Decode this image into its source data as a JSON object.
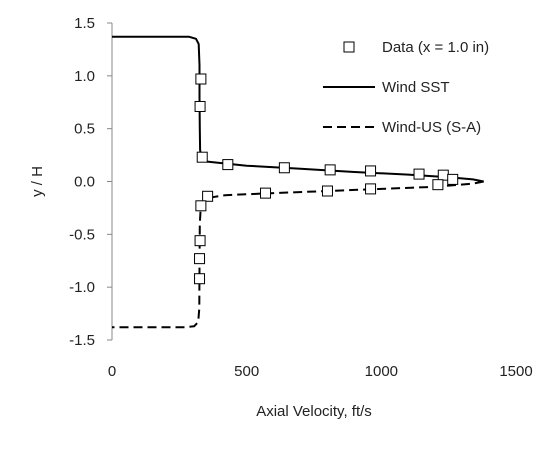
{
  "chart_data": {
    "type": "line",
    "title": "",
    "xlabel": "Axial Velocity, ft/s",
    "ylabel": "y / H",
    "xlim": [
      0,
      1500
    ],
    "ylim": [
      -1.5,
      1.5
    ],
    "xticks": [
      0,
      500,
      1000,
      1500
    ],
    "yticks": [
      1.5,
      1.0,
      0.5,
      0.0,
      -0.5,
      -1.0,
      -1.5
    ],
    "xtick_labels": [
      "0",
      "500",
      "1000",
      "1500"
    ],
    "ytick_labels": [
      "1.5",
      "1.0",
      "0.5",
      "0.0",
      "-0.5",
      "-1.0",
      "-1.5"
    ],
    "grid": false,
    "legend_position": "top-right",
    "series": [
      {
        "name": "Data (x = 1.0 in)",
        "style": "markers",
        "marker": "open-square",
        "color": "#000000",
        "points": [
          {
            "x": 330,
            "y": 0.97
          },
          {
            "x": 327,
            "y": 0.71
          },
          {
            "x": 335,
            "y": 0.23
          },
          {
            "x": 430,
            "y": 0.16
          },
          {
            "x": 640,
            "y": 0.13
          },
          {
            "x": 810,
            "y": 0.11
          },
          {
            "x": 960,
            "y": 0.1
          },
          {
            "x": 1140,
            "y": 0.07
          },
          {
            "x": 1230,
            "y": 0.06
          },
          {
            "x": 1265,
            "y": 0.02
          },
          {
            "x": 1210,
            "y": -0.03
          },
          {
            "x": 960,
            "y": -0.07
          },
          {
            "x": 800,
            "y": -0.09
          },
          {
            "x": 570,
            "y": -0.11
          },
          {
            "x": 355,
            "y": -0.14
          },
          {
            "x": 330,
            "y": -0.23
          },
          {
            "x": 327,
            "y": -0.56
          },
          {
            "x": 325,
            "y": -0.73
          },
          {
            "x": 325,
            "y": -0.92
          }
        ]
      },
      {
        "name": "Wind SST",
        "style": "solid",
        "color": "#000000",
        "points": [
          {
            "x": 0,
            "y": 1.37
          },
          {
            "x": 285,
            "y": 1.37
          },
          {
            "x": 312,
            "y": 1.35
          },
          {
            "x": 322,
            "y": 1.3
          },
          {
            "x": 325,
            "y": 1.1
          },
          {
            "x": 325,
            "y": 0.8
          },
          {
            "x": 326,
            "y": 0.5
          },
          {
            "x": 327,
            "y": 0.3
          },
          {
            "x": 332,
            "y": 0.22
          },
          {
            "x": 345,
            "y": 0.19
          },
          {
            "x": 500,
            "y": 0.15
          },
          {
            "x": 700,
            "y": 0.12
          },
          {
            "x": 900,
            "y": 0.09
          },
          {
            "x": 1100,
            "y": 0.065
          },
          {
            "x": 1250,
            "y": 0.04
          },
          {
            "x": 1340,
            "y": 0.02
          },
          {
            "x": 1380,
            "y": 0.0
          }
        ]
      },
      {
        "name": "Wind-US (S-A)",
        "style": "dashed",
        "color": "#000000",
        "points": [
          {
            "x": 1380,
            "y": 0.0
          },
          {
            "x": 1340,
            "y": -0.02
          },
          {
            "x": 1200,
            "y": -0.05
          },
          {
            "x": 1000,
            "y": -0.07
          },
          {
            "x": 800,
            "y": -0.09
          },
          {
            "x": 600,
            "y": -0.11
          },
          {
            "x": 420,
            "y": -0.13
          },
          {
            "x": 345,
            "y": -0.16
          },
          {
            "x": 330,
            "y": -0.22
          },
          {
            "x": 326,
            "y": -0.4
          },
          {
            "x": 325,
            "y": -0.8
          },
          {
            "x": 324,
            "y": -1.2
          },
          {
            "x": 320,
            "y": -1.33
          },
          {
            "x": 305,
            "y": -1.37
          },
          {
            "x": 270,
            "y": -1.38
          },
          {
            "x": 0,
            "y": -1.38
          }
        ]
      }
    ]
  }
}
